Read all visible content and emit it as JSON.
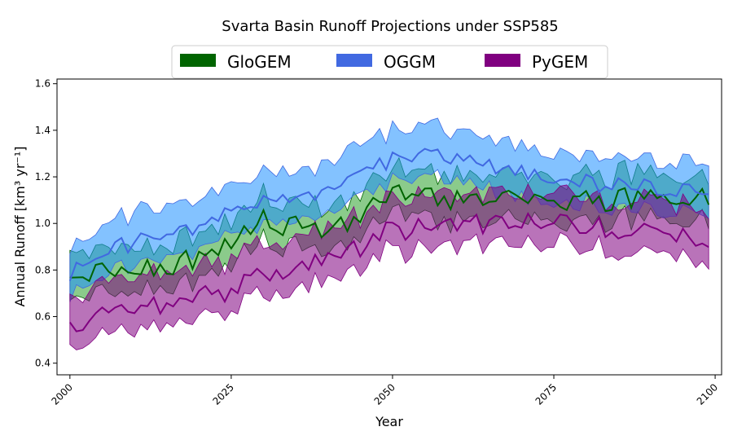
{
  "chart_data": {
    "type": "area",
    "title": "Svarta Basin Runoff Projections under SSP585",
    "xlabel": "Year",
    "ylabel": "Annual Runoff [km³ yr⁻¹]",
    "xlim": [
      1998,
      2101
    ],
    "ylim": [
      0.35,
      1.62
    ],
    "xticks": [
      2000,
      2025,
      2050,
      2075,
      2100
    ],
    "yticks": [
      0.4,
      0.6,
      0.8,
      1.0,
      1.2,
      1.4,
      1.6
    ],
    "ytick_labels": [
      "0.4",
      "0.6",
      "0.8",
      "1.0",
      "1.2",
      "1.4",
      "1.6"
    ],
    "grid": false,
    "legend_position": "top-center",
    "series": [
      {
        "name": "GloGEM",
        "color": "#006400",
        "band_color": "#2ca02c",
        "anchors": [
          [
            2000,
            0.73
          ],
          [
            2005,
            0.8
          ],
          [
            2010,
            0.8
          ],
          [
            2015,
            0.82
          ],
          [
            2020,
            0.85
          ],
          [
            2025,
            0.9
          ],
          [
            2030,
            1.02
          ],
          [
            2035,
            0.98
          ],
          [
            2040,
            0.98
          ],
          [
            2045,
            1.04
          ],
          [
            2050,
            1.12
          ],
          [
            2055,
            1.12
          ],
          [
            2060,
            1.1
          ],
          [
            2065,
            1.12
          ],
          [
            2070,
            1.1
          ],
          [
            2075,
            1.1
          ],
          [
            2080,
            1.09
          ],
          [
            2085,
            1.11
          ],
          [
            2090,
            1.1
          ],
          [
            2095,
            1.07
          ],
          [
            2099,
            1.13
          ]
        ],
        "lower_offset": 0.09,
        "upper_offset": 0.1,
        "noise": 0.05
      },
      {
        "name": "OGGM",
        "color": "#4169e1",
        "band_color": "#1e90ff",
        "anchors": [
          [
            2000,
            0.78
          ],
          [
            2005,
            0.88
          ],
          [
            2010,
            0.92
          ],
          [
            2015,
            0.95
          ],
          [
            2020,
            1.0
          ],
          [
            2025,
            1.05
          ],
          [
            2030,
            1.1
          ],
          [
            2035,
            1.12
          ],
          [
            2040,
            1.15
          ],
          [
            2045,
            1.19
          ],
          [
            2050,
            1.28
          ],
          [
            2055,
            1.3
          ],
          [
            2060,
            1.29
          ],
          [
            2065,
            1.26
          ],
          [
            2070,
            1.22
          ],
          [
            2075,
            1.19
          ],
          [
            2080,
            1.17
          ],
          [
            2085,
            1.17
          ],
          [
            2090,
            1.15
          ],
          [
            2095,
            1.13
          ],
          [
            2099,
            1.14
          ]
        ],
        "lower_offset": 0.1,
        "upper_offset": 0.12,
        "noise": 0.04
      },
      {
        "name": "PyGEM",
        "color": "#800080",
        "band_color": "#800080",
        "anchors": [
          [
            2000,
            0.58
          ],
          [
            2005,
            0.61
          ],
          [
            2010,
            0.63
          ],
          [
            2015,
            0.65
          ],
          [
            2020,
            0.68
          ],
          [
            2025,
            0.72
          ],
          [
            2030,
            0.77
          ],
          [
            2035,
            0.82
          ],
          [
            2040,
            0.86
          ],
          [
            2045,
            0.9
          ],
          [
            2050,
            0.97
          ],
          [
            2055,
            0.99
          ],
          [
            2060,
            1.0
          ],
          [
            2065,
            1.0
          ],
          [
            2070,
            1.0
          ],
          [
            2075,
            1.0
          ],
          [
            2080,
            0.99
          ],
          [
            2085,
            0.97
          ],
          [
            2090,
            0.95
          ],
          [
            2095,
            0.93
          ],
          [
            2099,
            0.92
          ]
        ],
        "lower_offset": 0.09,
        "upper_offset": 0.13,
        "noise": 0.05
      }
    ]
  }
}
